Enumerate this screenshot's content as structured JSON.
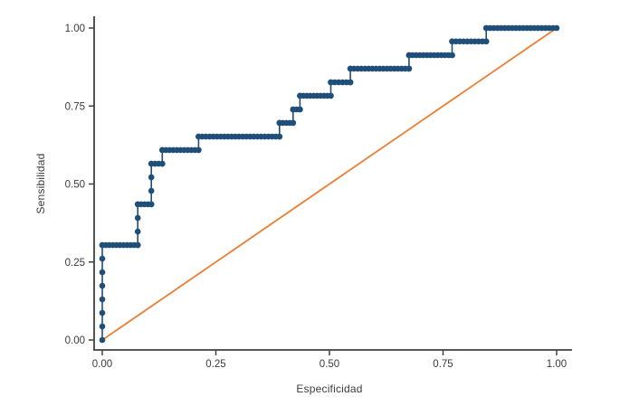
{
  "figure": {
    "background": "#ffffff",
    "title": ""
  },
  "chart_data": {
    "type": "line",
    "subtype": "roc-step-scatter",
    "title": "",
    "xlabel": "Especificidad",
    "ylabel": "Sensibilidad",
    "xlim": [
      0,
      1
    ],
    "ylim": [
      0,
      1
    ],
    "grid": false,
    "legend": "none",
    "x_ticks": {
      "values": [
        0,
        0.25,
        0.5,
        0.75,
        1
      ],
      "labels": [
        "0.00",
        "0.25",
        "0.50",
        "0.75",
        "1.00"
      ]
    },
    "y_ticks": {
      "values": [
        0,
        0.25,
        0.5,
        0.75,
        1
      ],
      "labels": [
        "0.00",
        "0.25",
        "0.50",
        "0.75",
        "1.00"
      ]
    },
    "series": [
      {
        "name": "roc-curve",
        "type": "step",
        "color": "#1F4E79",
        "marker": "circle",
        "marker_radius": 3.3,
        "sensitivity_increment": 0.04348,
        "points": [
          [
            0.0,
            0.0
          ],
          [
            0.0,
            0.304
          ],
          [
            0.078,
            0.304
          ],
          [
            0.078,
            0.435
          ],
          [
            0.108,
            0.435
          ],
          [
            0.108,
            0.565
          ],
          [
            0.132,
            0.565
          ],
          [
            0.132,
            0.609
          ],
          [
            0.212,
            0.609
          ],
          [
            0.212,
            0.652
          ],
          [
            0.39,
            0.652
          ],
          [
            0.39,
            0.696
          ],
          [
            0.42,
            0.696
          ],
          [
            0.42,
            0.739
          ],
          [
            0.435,
            0.739
          ],
          [
            0.435,
            0.783
          ],
          [
            0.503,
            0.783
          ],
          [
            0.503,
            0.826
          ],
          [
            0.546,
            0.826
          ],
          [
            0.546,
            0.87
          ],
          [
            0.675,
            0.87
          ],
          [
            0.675,
            0.913
          ],
          [
            0.77,
            0.913
          ],
          [
            0.77,
            0.957
          ],
          [
            0.845,
            0.957
          ],
          [
            0.845,
            1.0
          ],
          [
            1.0,
            1.0
          ]
        ]
      },
      {
        "name": "reference-diagonal",
        "type": "line",
        "color": "#ED7D31",
        "points": [
          [
            0,
            0
          ],
          [
            1,
            1
          ]
        ]
      }
    ]
  },
  "style": {
    "axis_color": "#404040",
    "tick_label_color": "#3a3a3a",
    "curve_color": "#1F4E79",
    "diagonal_color": "#ED7D31"
  }
}
